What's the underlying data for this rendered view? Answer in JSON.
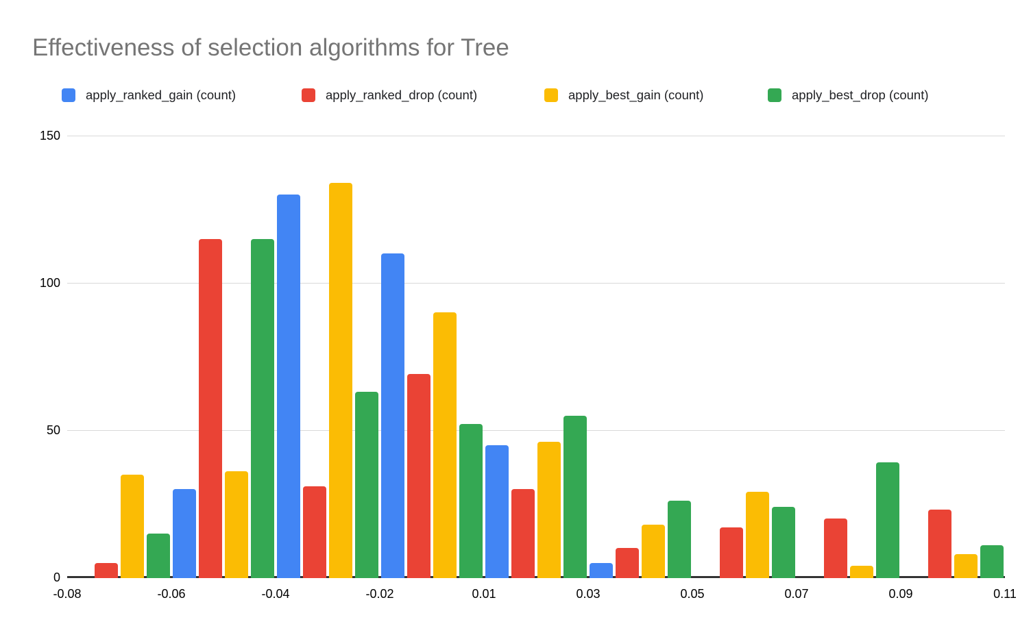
{
  "chart_data": {
    "type": "bar",
    "title": "Effectiveness of selection algorithms for Tree",
    "legend_position": "top",
    "grid": true,
    "ylim": [
      0,
      150
    ],
    "y_ticks": [
      0,
      50,
      100,
      150
    ],
    "x_tick_labels": [
      "-0.08",
      "-0.06",
      "-0.04",
      "-0.02",
      "0.01",
      "0.03",
      "0.05",
      "0.07",
      "0.09",
      "0.11"
    ],
    "group_count": 9,
    "series": [
      {
        "name": "apply_ranked_gain (count)",
        "color": "#4285F4",
        "values": [
          0,
          30,
          130,
          110,
          45,
          5,
          0,
          0,
          0
        ]
      },
      {
        "name": "apply_ranked_drop (count)",
        "color": "#EA4335",
        "values": [
          5,
          115,
          31,
          69,
          30,
          10,
          17,
          20,
          23
        ]
      },
      {
        "name": "apply_best_gain (count)",
        "color": "#FBBC04",
        "values": [
          35,
          36,
          134,
          90,
          46,
          18,
          29,
          4,
          8
        ]
      },
      {
        "name": "apply_best_drop (count)",
        "color": "#34A853",
        "values": [
          15,
          115,
          63,
          52,
          55,
          26,
          24,
          39,
          11
        ]
      }
    ],
    "style": {
      "title_color": "#757575",
      "axis_text_color": "#000000",
      "legend_text_color": "#202124",
      "gridline_color": "#D9D9D9",
      "axis_line_color": "#333333",
      "background": "#FFFFFF"
    }
  }
}
